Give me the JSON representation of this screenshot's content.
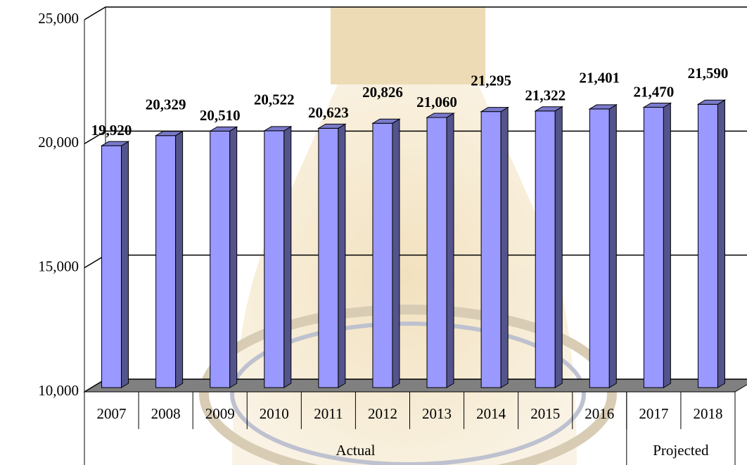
{
  "chart_data": {
    "type": "bar3d",
    "categories": [
      "2007",
      "2008",
      "2009",
      "2010",
      "2011",
      "2012",
      "2013",
      "2014",
      "2015",
      "2016",
      "2017",
      "2018"
    ],
    "values": [
      19920,
      20329,
      20510,
      20522,
      20623,
      20826,
      21060,
      21295,
      21322,
      21401,
      21470,
      21590
    ],
    "value_labels": [
      "19,920",
      "20,329",
      "20,510",
      "20,522",
      "20,623",
      "20,826",
      "21,060",
      "21,295",
      "21,322",
      "21,401",
      "21,470",
      "21,590"
    ],
    "groups": [
      {
        "name": "Actual",
        "from": "2007",
        "to": "2016"
      },
      {
        "name": "Projected",
        "from": "2017",
        "to": "2018"
      }
    ],
    "color": "#9999ff",
    "ylim": [
      10000,
      25000
    ],
    "yticks": [
      {
        "value": 10000,
        "label": "10,000"
      },
      {
        "value": 15000,
        "label": "15,000"
      },
      {
        "value": 20000,
        "label": "20,000"
      },
      {
        "value": 25000,
        "label": "25,000"
      }
    ],
    "grid": true
  }
}
